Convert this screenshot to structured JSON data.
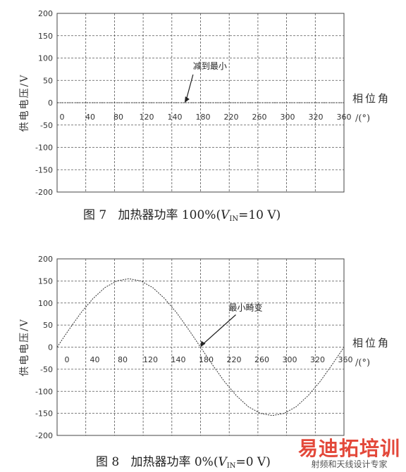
{
  "chart_data": [
    {
      "type": "line",
      "ylabel": "供电电压/V",
      "xlabel": "相位角",
      "xunit": "/(°)",
      "x_ticks": [
        "0",
        "40",
        "80",
        "120",
        "140",
        "180",
        "220",
        "260",
        "300",
        "320",
        "360"
      ],
      "y_ticks": [
        "200",
        "150",
        "100",
        "50",
        "0",
        "-50",
        "-100",
        "-150",
        "-200"
      ],
      "xlim": [
        0,
        360
      ],
      "ylim": [
        -200,
        200
      ],
      "grid": true,
      "series": [
        {
          "x": [
            0,
            360
          ],
          "y": [
            0,
            0
          ]
        }
      ],
      "annotation": {
        "text": "减到最小",
        "x": 160,
        "y": 0
      },
      "caption": {
        "fig": "图 7",
        "text": "加热器功率 100%(",
        "var": "V",
        "sub": "IN",
        "tail": "=10 V)"
      }
    },
    {
      "type": "line",
      "ylabel": "供电电压/V",
      "xlabel": "相位角",
      "xunit": "/(°)",
      "x_ticks": [
        "0",
        "40",
        "80",
        "120",
        "140",
        "180",
        "220",
        "260",
        "300",
        "320",
        "360"
      ],
      "y_ticks": [
        "200",
        "150",
        "100",
        "50",
        "0",
        "-50",
        "-100",
        "-150",
        "-200"
      ],
      "xlim": [
        0,
        360
      ],
      "ylim": [
        -200,
        200
      ],
      "grid": true,
      "series": [
        {
          "x": [
            0,
            15,
            30,
            45,
            60,
            75,
            90,
            105,
            120,
            135,
            150,
            165,
            180,
            195,
            210,
            225,
            240,
            255,
            270,
            285,
            300,
            315,
            330,
            345,
            360
          ],
          "y": [
            0,
            40,
            78,
            110,
            135,
            150,
            155,
            150,
            135,
            110,
            78,
            40,
            0,
            -40,
            -78,
            -110,
            -135,
            -150,
            -155,
            -150,
            -135,
            -110,
            -78,
            -40,
            0
          ]
        }
      ],
      "annotation": {
        "text": "最小畸变",
        "x": 180,
        "y": 0
      },
      "caption": {
        "fig": "图 8",
        "text": "加热器功率 0%(",
        "var": "V",
        "sub": "IN",
        "tail": "=0 V)"
      }
    }
  ],
  "watermark": {
    "brand": "易迪拓培训",
    "sub": "射频和天线设计专家"
  }
}
